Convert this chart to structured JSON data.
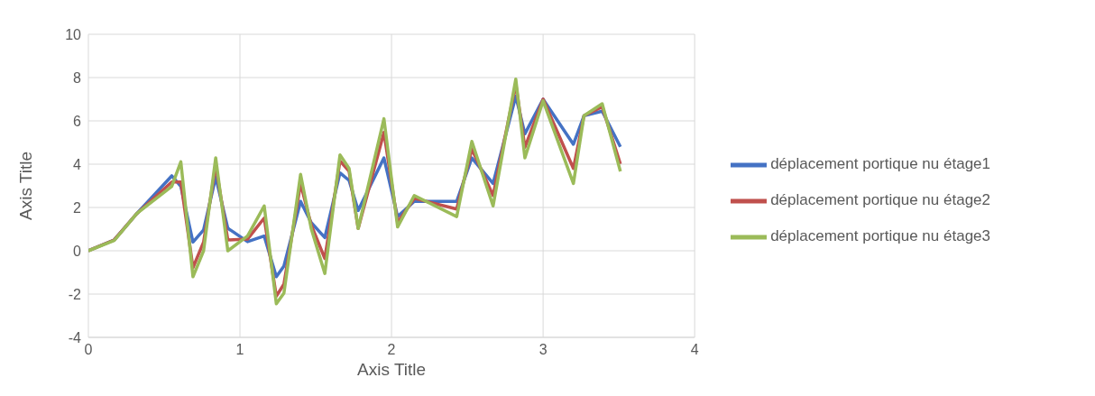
{
  "chart_data": {
    "type": "line",
    "xlabel": "Axis Title",
    "ylabel": "Axis Title",
    "x": [
      0,
      0.17,
      0.32,
      0.55,
      0.61,
      0.69,
      0.76,
      0.84,
      0.92,
      1.05,
      1.16,
      1.24,
      1.29,
      1.4,
      1.47,
      1.56,
      1.66,
      1.72,
      1.78,
      1.95,
      2.04,
      2.15,
      2.43,
      2.53,
      2.67,
      2.82,
      2.88,
      3.0,
      3.2,
      3.27,
      3.39,
      3.51
    ],
    "series": [
      {
        "name": "déplacement portique nu étage1",
        "color": "#4472c4",
        "values": [
          0,
          0.5,
          1.72,
          3.46,
          2.97,
          0.4,
          0.96,
          3.4,
          1.04,
          0.42,
          0.68,
          -1.2,
          -0.71,
          2.28,
          1.3,
          0.61,
          3.6,
          3.25,
          1.86,
          4.29,
          1.58,
          2.28,
          2.28,
          4.29,
          3.11,
          7.14,
          5.4,
          7.0,
          4.92,
          6.24,
          6.45,
          4.8
        ]
      },
      {
        "name": "déplacement portique nu étage2",
        "color": "#c0504d",
        "values": [
          0,
          0.5,
          1.72,
          3.18,
          3.18,
          -0.78,
          0.4,
          3.95,
          0.5,
          0.54,
          1.51,
          -2.1,
          -1.54,
          3.1,
          1.2,
          -0.36,
          4.15,
          3.67,
          1.03,
          5.47,
          1.3,
          2.42,
          1.93,
          4.7,
          2.55,
          7.7,
          4.78,
          7.0,
          3.8,
          6.24,
          6.65,
          4.01
        ]
      },
      {
        "name": "déplacement portique nu étage3",
        "color": "#9bbb59",
        "values": [
          0,
          0.47,
          1.72,
          2.97,
          4.11,
          -1.2,
          0,
          4.29,
          0,
          0.68,
          2.07,
          -2.45,
          -1.96,
          3.53,
          1.03,
          -1.05,
          4.43,
          3.8,
          1.03,
          6.1,
          1.1,
          2.55,
          1.58,
          5.05,
          2.07,
          7.93,
          4.29,
          6.93,
          3.11,
          6.24,
          6.79,
          3.67
        ]
      }
    ],
    "xlim": [
      0,
      4
    ],
    "xticks": [
      0,
      1,
      2,
      3,
      4
    ],
    "ylim": [
      -4,
      10
    ],
    "yticks": [
      -4,
      -2,
      0,
      2,
      4,
      6,
      8,
      10
    ],
    "grid": true,
    "legend": "right",
    "marker": "none",
    "line_style": "solid"
  }
}
